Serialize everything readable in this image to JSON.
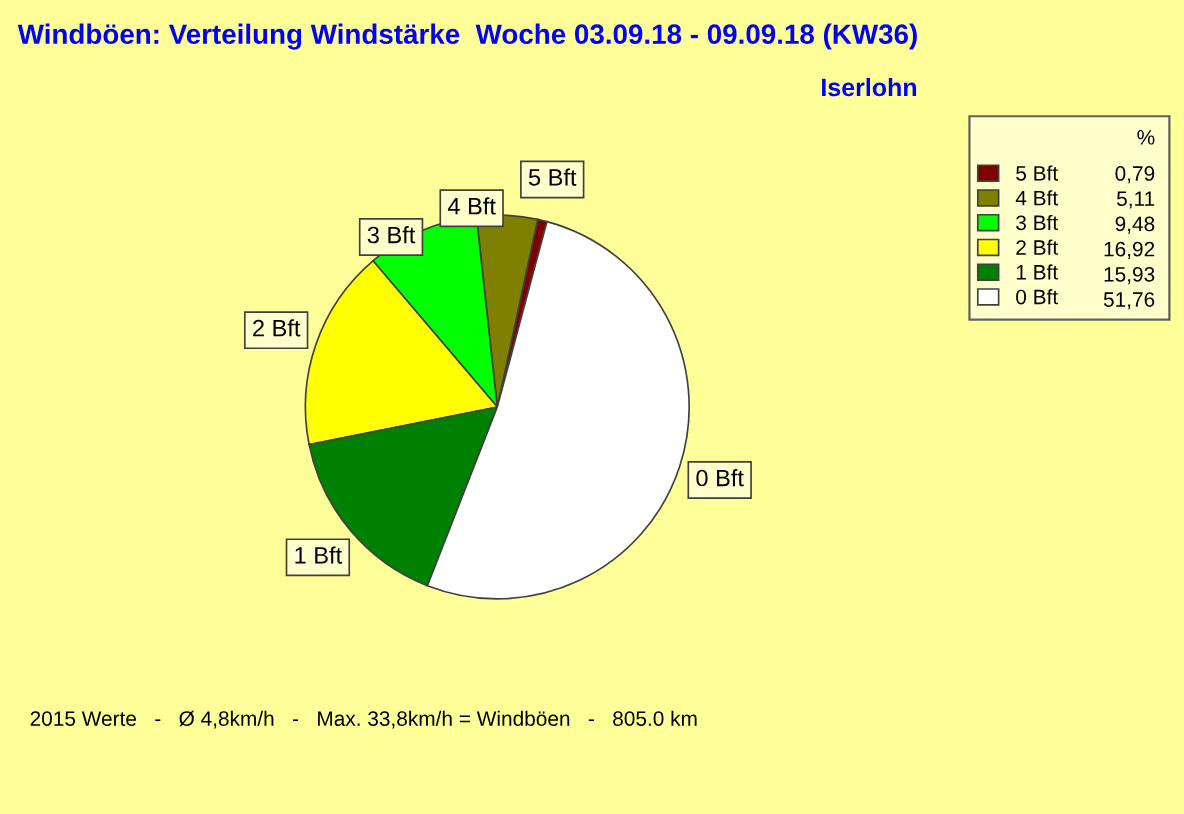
{
  "chart_data": {
    "type": "pie",
    "title": "Windböen: Verteilung Windstärke  Woche 03.09.18 - 09.09.18 (KW36)",
    "subtitle": "Iserlohn",
    "categories": [
      "5 Bft",
      "4 Bft",
      "3 Bft",
      "2 Bft",
      "1 Bft",
      "0 Bft"
    ],
    "values": [
      0.79,
      5.11,
      9.48,
      16.92,
      15.93,
      51.76
    ],
    "value_labels": [
      "0,79",
      "5,11",
      "9,48",
      "16,92",
      "15,93",
      "51,76"
    ],
    "colors": [
      "#800000",
      "#808000",
      "#00ff00",
      "#ffff00",
      "#008000",
      "#ffffff"
    ],
    "legend": "right",
    "legend_title": "%",
    "annotations": [
      "2015 Werte   -   Ø 4,8km/h   -   Max. 33,8km/h = Windböen   -   805.0 km"
    ]
  }
}
